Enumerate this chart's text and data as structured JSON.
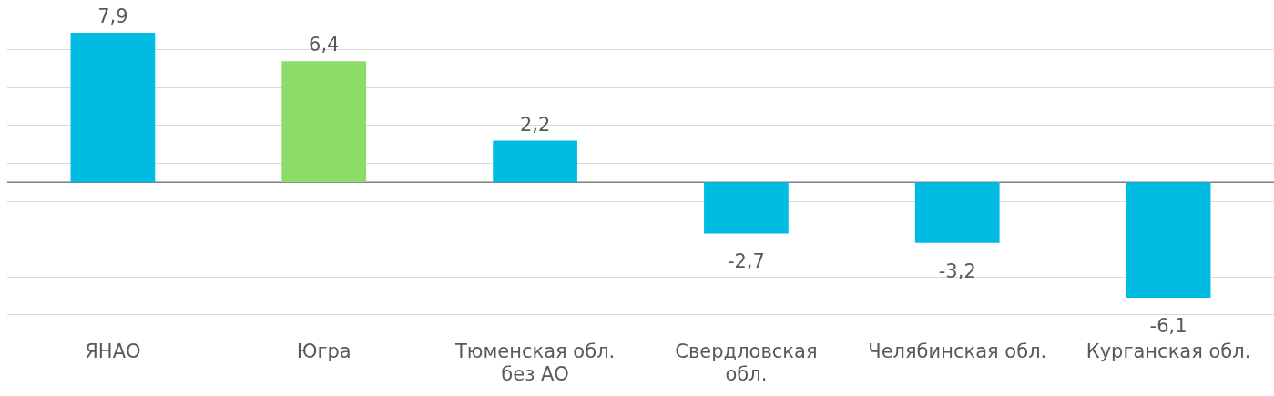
{
  "chart_data": {
    "type": "bar",
    "categories": [
      "ЯНАО",
      "Югра",
      "Тюменская обл. без АО",
      "Свердловская обл.",
      "Челябинская обл.",
      "Курганская обл."
    ],
    "values": [
      7.9,
      6.4,
      2.2,
      -2.7,
      -3.2,
      -6.1
    ],
    "colors": [
      "#00bce3",
      "#8cdc6a",
      "#00bce3",
      "#00bce3",
      "#00bce3",
      "#00bce3"
    ],
    "value_labels": [
      "7,9",
      "6,4",
      "2,2",
      "-2,7",
      "-3,2",
      "-6,1"
    ],
    "yticks": [
      {
        "value": -7,
        "label": null
      },
      {
        "value": -5,
        "label": null
      },
      {
        "value": -3,
        "label": null
      },
      {
        "value": -1,
        "label": null
      },
      {
        "value": 1,
        "label": null
      },
      {
        "value": 3,
        "label": null
      },
      {
        "value": 5,
        "label": null
      },
      {
        "value": 7,
        "label": null
      }
    ],
    "ref_lines": [
      {
        "axis": "y",
        "value": 0,
        "color": "#7f7f7f"
      }
    ],
    "grid": "y",
    "tick_labels": "x"
  }
}
